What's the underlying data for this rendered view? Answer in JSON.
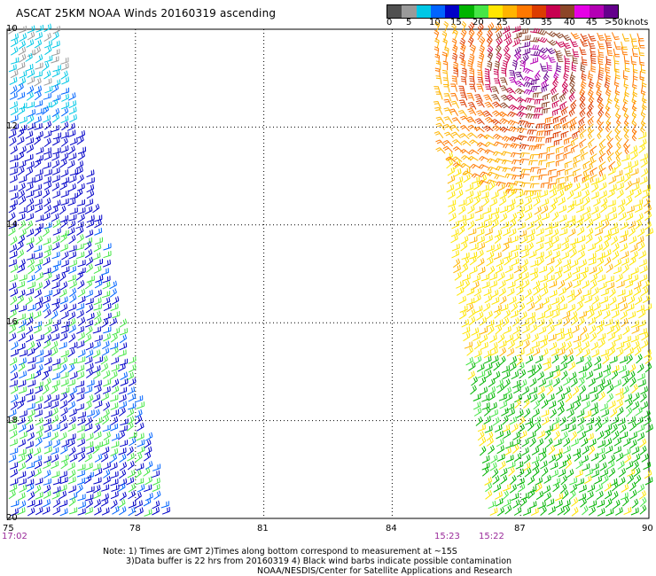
{
  "title": "ASCAT 25KM NOAA Winds 20160319 ascending",
  "legend": {
    "labels": [
      "0",
      "5",
      "10",
      "15",
      "20",
      "25",
      "30",
      "35",
      "40",
      "45",
      ">50"
    ],
    "units": "knots",
    "colors": [
      "#505050",
      "#9a9a9a",
      "#00c8e6",
      "#0064ff",
      "#0000c8",
      "#00b400",
      "#46e646",
      "#ffe600",
      "#ffb400",
      "#ff7800",
      "#dc3c00",
      "#c80050",
      "#8c4628",
      "#e600e6",
      "#b400b4",
      "#64008c"
    ]
  },
  "map": {
    "lon_range": [
      75,
      90
    ],
    "lat_range": [
      10,
      20
    ],
    "lon_ticks": [
      "75",
      "78",
      "81",
      "84",
      "87",
      "90"
    ],
    "lat_ticks": [
      "10",
      "12",
      "14",
      "16",
      "18",
      "20"
    ],
    "grid": true,
    "swaths": [
      {
        "name": "west",
        "start_time": "17:02",
        "dominant_speeds": "5-25 knots"
      },
      {
        "name": "east",
        "start_times": [
          "15:23",
          "15:22"
        ],
        "dominant_speeds": "20-45 knots, cyclone near 12N 87E"
      }
    ]
  },
  "times": {
    "west": "17:02",
    "east1": "15:23",
    "east2": "15:22"
  },
  "notes": {
    "line1": "Note: 1) Times are GMT 2)Times along bottom correspond to measurement at ~15S",
    "line2": "3)Data buffer is 22 hrs from 20160319 4) Black wind barbs indicate possible contamination",
    "line3": "NOAA/NESDIS/Center for Satellite Applications and Research"
  }
}
